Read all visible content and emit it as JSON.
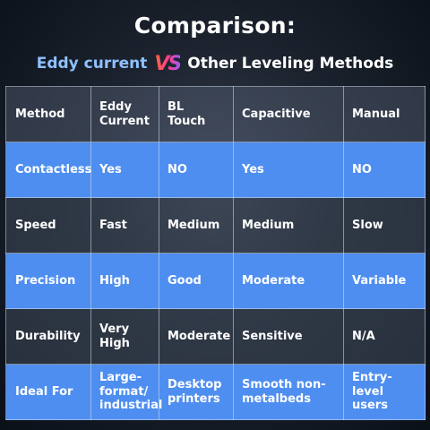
{
  "title": "Comparison:",
  "subtitle": {
    "left": "Eddy current",
    "vs": "VS",
    "right": "Other Leveling Methods"
  },
  "colors": {
    "accent_blue": "#4e8ef0",
    "subtitle_blue": "#8fc1ff",
    "vs_gradient": [
      "#ff6a3d",
      "#ff3d8a",
      "#9a5cff"
    ]
  },
  "table": {
    "headers": [
      "Method",
      "Eddy Current",
      "BL Touch",
      "Capacitive",
      "Manual"
    ],
    "rows": [
      {
        "label": "Contactless",
        "cells": [
          "Yes",
          "NO",
          "Yes",
          "NO"
        ]
      },
      {
        "label": "Speed",
        "cells": [
          "Fast",
          "Medium",
          "Medium",
          "Slow"
        ]
      },
      {
        "label": "Precision",
        "cells": [
          "High",
          "Good",
          "Moderate",
          "Variable"
        ]
      },
      {
        "label": "Durability",
        "cells": [
          "Very High",
          "Moderate",
          "Sensitive",
          "N/A"
        ]
      },
      {
        "label": "Ideal For",
        "cells": [
          "Large-format/ industrial",
          "Desktop printers",
          "Smooth non-metalbeds",
          "Entry-level users"
        ]
      }
    ]
  }
}
